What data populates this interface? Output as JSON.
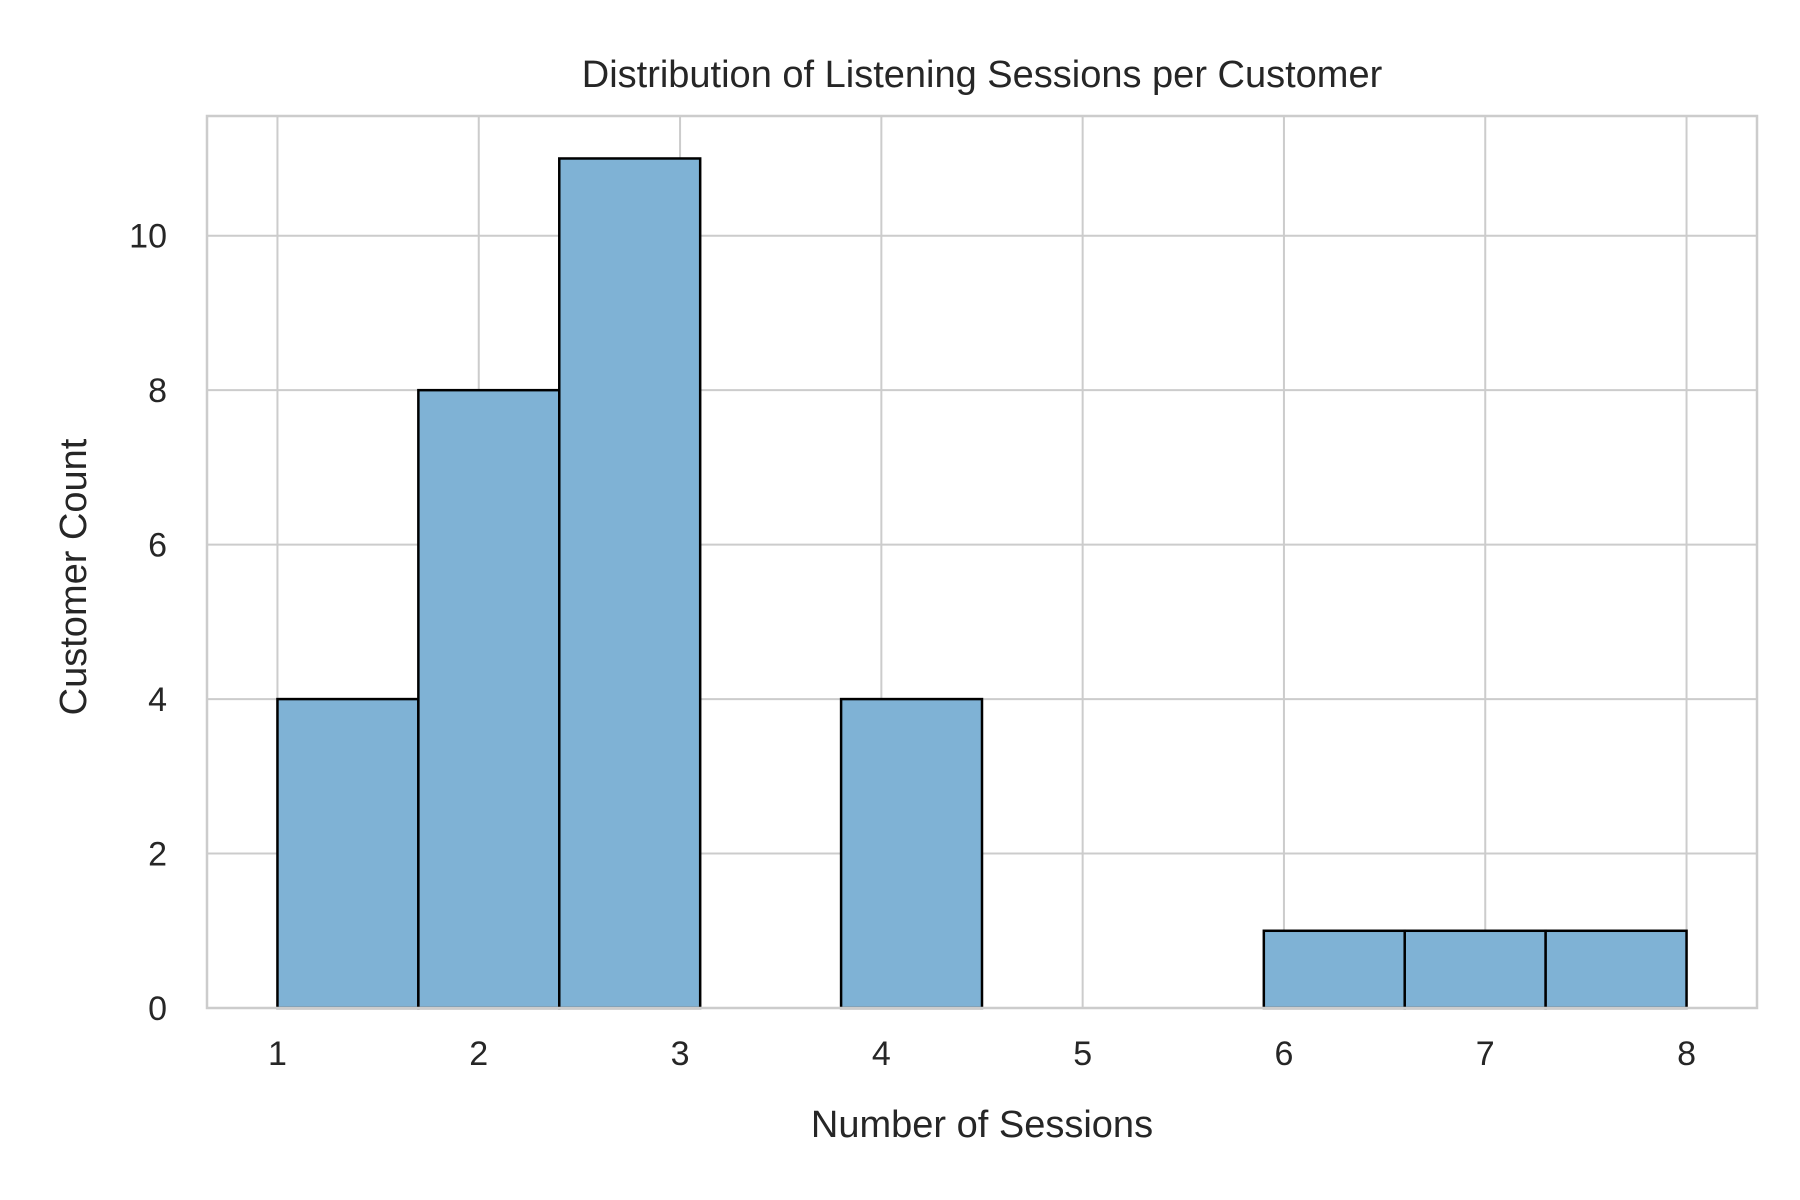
{
  "chart_data": {
    "type": "bar",
    "title": "Distribution of Listening Sessions per Customer",
    "xlabel": "Number of Sessions",
    "ylabel": "Customer Count",
    "xlim": [
      0.65,
      8.35
    ],
    "ylim": [
      0,
      11.55
    ],
    "xticks": [
      1,
      2,
      3,
      4,
      5,
      6,
      7,
      8
    ],
    "yticks": [
      0,
      2,
      4,
      6,
      8,
      10
    ],
    "grid": true,
    "bin_edges": [
      1.0,
      1.7,
      2.4,
      3.1,
      3.8,
      4.5,
      5.2,
      5.9,
      6.6,
      7.3,
      8.0
    ],
    "counts": [
      4,
      8,
      11,
      0,
      4,
      0,
      0,
      1,
      1,
      1
    ],
    "bar_color": "#7fb2d5",
    "edge_color": "#000000"
  }
}
